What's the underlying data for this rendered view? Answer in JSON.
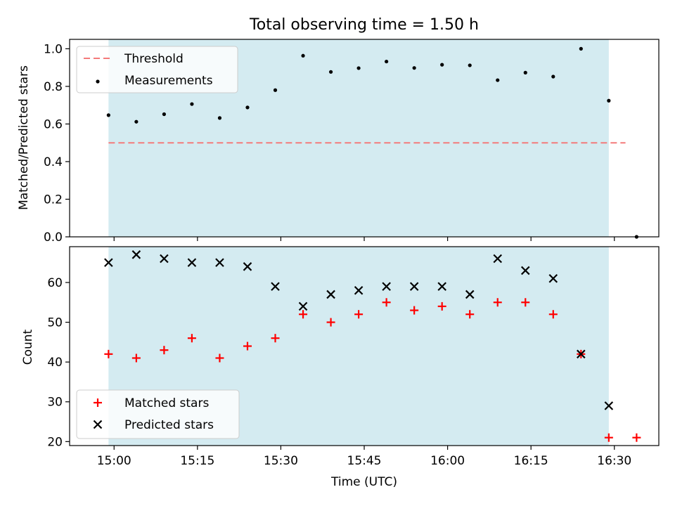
{
  "figure": {
    "title": "Total observing time = 1.50 h",
    "xlabel": "Time (UTC)"
  },
  "chart_data": [
    {
      "type": "scatter",
      "ylabel": "Matched/Predicted stars",
      "ylim": [
        0,
        1.05
      ],
      "yticks": [
        0.0,
        0.2,
        0.4,
        0.6,
        0.8,
        1.0
      ],
      "ytick_labels": [
        "0.0",
        "0.2",
        "0.4",
        "0.6",
        "0.8",
        "1.0"
      ],
      "xlim": [
        "14:52",
        "16:38"
      ],
      "legend_position": "top-left",
      "observing_window": [
        "14:59",
        "16:29"
      ],
      "window_color": "#d4ebf1",
      "threshold": {
        "name": "Threshold",
        "value": 0.5,
        "x_start": "14:59",
        "x_end": "16:32",
        "color": "#f47b7b"
      },
      "series": [
        {
          "name": "Measurements",
          "color": "#000000",
          "x": [
            "14:59",
            "15:04",
            "15:09",
            "15:14",
            "15:19",
            "15:24",
            "15:29",
            "15:34",
            "15:39",
            "15:44",
            "15:49",
            "15:54",
            "15:59",
            "16:04",
            "16:09",
            "16:14",
            "16:19",
            "16:24",
            "16:29",
            "16:34"
          ],
          "y": [
            0.647,
            0.612,
            0.652,
            0.706,
            0.632,
            0.688,
            0.78,
            0.963,
            0.877,
            0.897,
            0.932,
            0.898,
            0.915,
            0.912,
            0.833,
            0.873,
            0.852,
            1.0,
            0.724,
            0.0
          ]
        }
      ]
    },
    {
      "type": "scatter",
      "ylabel": "Count",
      "ylim": [
        19,
        69
      ],
      "yticks": [
        20,
        30,
        40,
        50,
        60
      ],
      "ytick_labels": [
        "20",
        "30",
        "40",
        "50",
        "60"
      ],
      "xlim": [
        "14:52",
        "16:38"
      ],
      "xticks": [
        "15:00",
        "15:15",
        "15:30",
        "15:45",
        "16:00",
        "16:15",
        "16:30"
      ],
      "xtick_labels": [
        "15:00",
        "15:15",
        "15:30",
        "15:45",
        "16:00",
        "16:15",
        "16:30"
      ],
      "legend_position": "bottom-left",
      "observing_window": [
        "14:59",
        "16:29"
      ],
      "window_color": "#d4ebf1",
      "series": [
        {
          "name": "Matched stars",
          "marker": "plus",
          "color": "#ff0000",
          "x": [
            "14:59",
            "15:04",
            "15:09",
            "15:14",
            "15:19",
            "15:24",
            "15:29",
            "15:34",
            "15:39",
            "15:44",
            "15:49",
            "15:54",
            "15:59",
            "16:04",
            "16:09",
            "16:14",
            "16:19",
            "16:24",
            "16:29",
            "16:34"
          ],
          "y": [
            42,
            41,
            43,
            46,
            41,
            44,
            46,
            52,
            50,
            52,
            55,
            53,
            54,
            52,
            55,
            55,
            52,
            42,
            21,
            21
          ]
        },
        {
          "name": "Predicted stars",
          "marker": "x",
          "color": "#000000",
          "x": [
            "14:59",
            "15:04",
            "15:09",
            "15:14",
            "15:19",
            "15:24",
            "15:29",
            "15:34",
            "15:39",
            "15:44",
            "15:49",
            "15:54",
            "15:59",
            "16:04",
            "16:09",
            "16:14",
            "16:19",
            "16:24",
            "16:29"
          ],
          "y": [
            65,
            67,
            66,
            65,
            65,
            64,
            59,
            54,
            57,
            58,
            59,
            59,
            59,
            57,
            66,
            63,
            61,
            42,
            29
          ]
        }
      ]
    }
  ]
}
